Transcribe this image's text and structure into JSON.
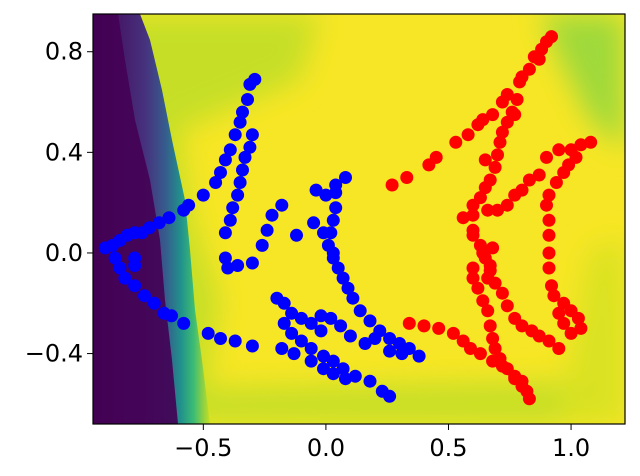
{
  "chart_data": {
    "type": "scatter",
    "title": "",
    "xlabel": "",
    "ylabel": "",
    "xlim": [
      -0.95,
      1.22
    ],
    "ylim": [
      -0.68,
      0.95
    ],
    "x_ticks": [
      {
        "value": -0.5,
        "label": "−0.5"
      },
      {
        "value": 0.0,
        "label": "0.0"
      },
      {
        "value": 0.5,
        "label": "0.5"
      },
      {
        "value": 1.0,
        "label": "1.0"
      }
    ],
    "y_ticks": [
      {
        "value": 0.8,
        "label": "0.8"
      },
      {
        "value": 0.4,
        "label": "0.4"
      },
      {
        "value": 0.0,
        "label": "0.0"
      },
      {
        "value": -0.4,
        "label": "−0.4"
      }
    ],
    "background": {
      "type": "decision-surface",
      "colormap": "viridis",
      "low_region": "left edge",
      "high_region": "center"
    },
    "series": [
      {
        "color": "#0000ff",
        "points": [
          [
            -0.9,
            0.02
          ],
          [
            -0.87,
            0.03
          ],
          [
            -0.84,
            0.05
          ],
          [
            -0.81,
            0.07
          ],
          [
            -0.78,
            0.08
          ],
          [
            -0.75,
            0.08
          ],
          [
            -0.72,
            0.1
          ],
          [
            -0.68,
            0.12
          ],
          [
            -0.64,
            0.14
          ],
          [
            -0.86,
            -0.02
          ],
          [
            -0.84,
            -0.06
          ],
          [
            -0.82,
            -0.1
          ],
          [
            -0.78,
            -0.13
          ],
          [
            -0.74,
            -0.17
          ],
          [
            -0.7,
            -0.2
          ],
          [
            -0.66,
            -0.24
          ],
          [
            -0.63,
            -0.25
          ],
          [
            -0.58,
            -0.28
          ],
          [
            -0.78,
            -0.02
          ],
          [
            -0.78,
            -0.05
          ],
          [
            -0.58,
            0.17
          ],
          [
            -0.56,
            0.19
          ],
          [
            -0.5,
            0.23
          ],
          [
            -0.45,
            0.28
          ],
          [
            -0.43,
            0.32
          ],
          [
            -0.41,
            0.37
          ],
          [
            -0.39,
            0.41
          ],
          [
            -0.37,
            0.47
          ],
          [
            -0.35,
            0.52
          ],
          [
            -0.34,
            0.56
          ],
          [
            -0.32,
            0.61
          ],
          [
            -0.31,
            0.67
          ],
          [
            -0.29,
            0.69
          ],
          [
            -0.3,
            0.47
          ],
          [
            -0.31,
            0.42
          ],
          [
            -0.33,
            0.38
          ],
          [
            -0.34,
            0.33
          ],
          [
            -0.35,
            0.28
          ],
          [
            -0.36,
            0.23
          ],
          [
            -0.38,
            0.18
          ],
          [
            -0.39,
            0.13
          ],
          [
            -0.41,
            0.08
          ],
          [
            -0.41,
            -0.02
          ],
          [
            -0.4,
            -0.06
          ],
          [
            -0.36,
            -0.05
          ],
          [
            -0.3,
            -0.04
          ],
          [
            -0.26,
            0.03
          ],
          [
            -0.24,
            0.09
          ],
          [
            -0.22,
            0.15
          ],
          [
            -0.18,
            0.19
          ],
          [
            -0.2,
            -0.18
          ],
          [
            -0.17,
            -0.2
          ],
          [
            -0.14,
            -0.24
          ],
          [
            -0.1,
            -0.26
          ],
          [
            -0.06,
            -0.28
          ],
          [
            -0.02,
            -0.31
          ],
          [
            -0.12,
            0.07
          ],
          [
            -0.05,
            0.12
          ],
          [
            -0.48,
            -0.32
          ],
          [
            -0.43,
            -0.34
          ],
          [
            -0.37,
            -0.35
          ],
          [
            -0.3,
            -0.37
          ],
          [
            -0.17,
            -0.28
          ],
          [
            -0.14,
            -0.32
          ],
          [
            -0.1,
            -0.35
          ],
          [
            -0.06,
            -0.38
          ],
          [
            -0.01,
            -0.41
          ],
          [
            0.03,
            -0.43
          ],
          [
            0.07,
            -0.46
          ],
          [
            0.12,
            -0.49
          ],
          [
            0.18,
            -0.51
          ],
          [
            0.23,
            -0.55
          ],
          [
            0.26,
            -0.57
          ],
          [
            -0.18,
            -0.38
          ],
          [
            -0.13,
            -0.4
          ],
          [
            -0.06,
            -0.43
          ],
          [
            -0.01,
            -0.46
          ],
          [
            0.03,
            -0.48
          ],
          [
            0.08,
            -0.5
          ],
          [
            0.0,
            0.23
          ],
          [
            0.04,
            0.24
          ],
          [
            0.04,
            0.27
          ],
          [
            0.08,
            0.3
          ],
          [
            0.04,
            0.18
          ],
          [
            0.03,
            0.13
          ],
          [
            0.02,
            0.08
          ],
          [
            0.01,
            0.03
          ],
          [
            0.03,
            -0.02
          ],
          [
            0.05,
            -0.06
          ],
          [
            0.07,
            -0.1
          ],
          [
            0.09,
            -0.14
          ],
          [
            0.11,
            -0.18
          ],
          [
            0.14,
            -0.23
          ],
          [
            0.18,
            -0.27
          ],
          [
            0.22,
            -0.31
          ],
          [
            0.26,
            -0.34
          ],
          [
            0.3,
            -0.36
          ],
          [
            0.34,
            -0.38
          ],
          [
            0.38,
            -0.41
          ],
          [
            -0.04,
            0.25
          ],
          [
            -0.01,
            0.08
          ],
          [
            0.03,
            0.0
          ],
          [
            -0.02,
            -0.25
          ],
          [
            0.02,
            -0.26
          ],
          [
            0.06,
            -0.29
          ],
          [
            0.1,
            -0.33
          ],
          [
            0.16,
            -0.36
          ],
          [
            0.2,
            -0.34
          ],
          [
            0.26,
            -0.39
          ],
          [
            0.31,
            -0.4
          ]
        ]
      },
      {
        "color": "#ff0000",
        "points": [
          [
            0.27,
            0.27
          ],
          [
            0.33,
            0.3
          ],
          [
            0.42,
            0.35
          ],
          [
            0.45,
            0.38
          ],
          [
            0.53,
            0.44
          ],
          [
            0.58,
            0.47
          ],
          [
            0.62,
            0.51
          ],
          [
            0.64,
            0.53
          ],
          [
            0.68,
            0.55
          ],
          [
            0.72,
            0.6
          ],
          [
            0.74,
            0.63
          ],
          [
            0.79,
            0.68
          ],
          [
            0.83,
            0.73
          ],
          [
            0.85,
            0.78
          ],
          [
            0.88,
            0.81
          ],
          [
            0.9,
            0.84
          ],
          [
            0.92,
            0.86
          ],
          [
            0.76,
            0.56
          ],
          [
            0.74,
            0.52
          ],
          [
            0.72,
            0.48
          ],
          [
            0.71,
            0.44
          ],
          [
            0.7,
            0.39
          ],
          [
            0.69,
            0.34
          ],
          [
            0.67,
            0.29
          ],
          [
            0.65,
            0.26
          ],
          [
            0.63,
            0.22
          ],
          [
            0.6,
            0.19
          ],
          [
            0.6,
            0.15
          ],
          [
            0.6,
            0.09
          ],
          [
            0.8,
            0.7
          ],
          [
            0.87,
            0.77
          ],
          [
            0.78,
            0.61
          ],
          [
            0.77,
            0.55
          ],
          [
            0.65,
            0.37
          ],
          [
            0.66,
            0.17
          ],
          [
            0.7,
            0.17
          ],
          [
            0.74,
            0.19
          ],
          [
            0.77,
            0.23
          ],
          [
            0.8,
            0.25
          ],
          [
            0.83,
            0.29
          ],
          [
            0.87,
            0.31
          ],
          [
            0.9,
            0.38
          ],
          [
            0.95,
            0.41
          ],
          [
            1.0,
            0.41
          ],
          [
            1.04,
            0.43
          ],
          [
            1.08,
            0.44
          ],
          [
            1.02,
            0.38
          ],
          [
            0.99,
            0.35
          ],
          [
            0.97,
            0.32
          ],
          [
            0.94,
            0.28
          ],
          [
            0.91,
            0.23
          ],
          [
            0.9,
            0.19
          ],
          [
            0.91,
            0.13
          ],
          [
            0.91,
            0.07
          ],
          [
            0.91,
            0.0
          ],
          [
            0.91,
            -0.06
          ],
          [
            0.92,
            -0.13
          ],
          [
            0.93,
            -0.17
          ],
          [
            0.97,
            -0.2
          ],
          [
            1.0,
            -0.23
          ],
          [
            1.03,
            -0.26
          ],
          [
            1.04,
            -0.3
          ],
          [
            0.95,
            -0.24
          ],
          [
            0.97,
            -0.28
          ],
          [
            1.0,
            -0.32
          ],
          [
            0.56,
            0.14
          ],
          [
            0.6,
            0.07
          ],
          [
            0.63,
            0.03
          ],
          [
            0.65,
            -0.02
          ],
          [
            0.67,
            -0.07
          ],
          [
            0.69,
            -0.12
          ],
          [
            0.72,
            -0.16
          ],
          [
            0.74,
            -0.21
          ],
          [
            0.77,
            -0.26
          ],
          [
            0.8,
            -0.29
          ],
          [
            0.84,
            -0.31
          ],
          [
            0.87,
            -0.33
          ],
          [
            0.91,
            -0.35
          ],
          [
            0.95,
            -0.38
          ],
          [
            0.34,
            -0.28
          ],
          [
            0.4,
            -0.29
          ],
          [
            0.46,
            -0.3
          ],
          [
            0.52,
            -0.32
          ],
          [
            0.56,
            -0.35
          ],
          [
            0.59,
            -0.38
          ],
          [
            0.63,
            -0.4
          ],
          [
            0.68,
            -0.43
          ],
          [
            0.72,
            -0.45
          ],
          [
            0.77,
            -0.49
          ],
          [
            0.8,
            -0.51
          ],
          [
            0.6,
            -0.06
          ],
          [
            0.6,
            -0.1
          ],
          [
            0.62,
            -0.14
          ],
          [
            0.64,
            -0.19
          ],
          [
            0.66,
            -0.23
          ],
          [
            0.67,
            -0.29
          ],
          [
            0.68,
            -0.34
          ],
          [
            0.69,
            -0.38
          ],
          [
            0.71,
            -0.42
          ],
          [
            0.74,
            -0.46
          ],
          [
            0.77,
            -0.5
          ],
          [
            0.8,
            -0.53
          ],
          [
            0.82,
            -0.55
          ],
          [
            0.83,
            -0.58
          ],
          [
            0.64,
            0.0
          ],
          [
            0.67,
            -0.05
          ],
          [
            0.66,
            -0.1
          ],
          [
            0.68,
            0.02
          ]
        ]
      }
    ]
  }
}
